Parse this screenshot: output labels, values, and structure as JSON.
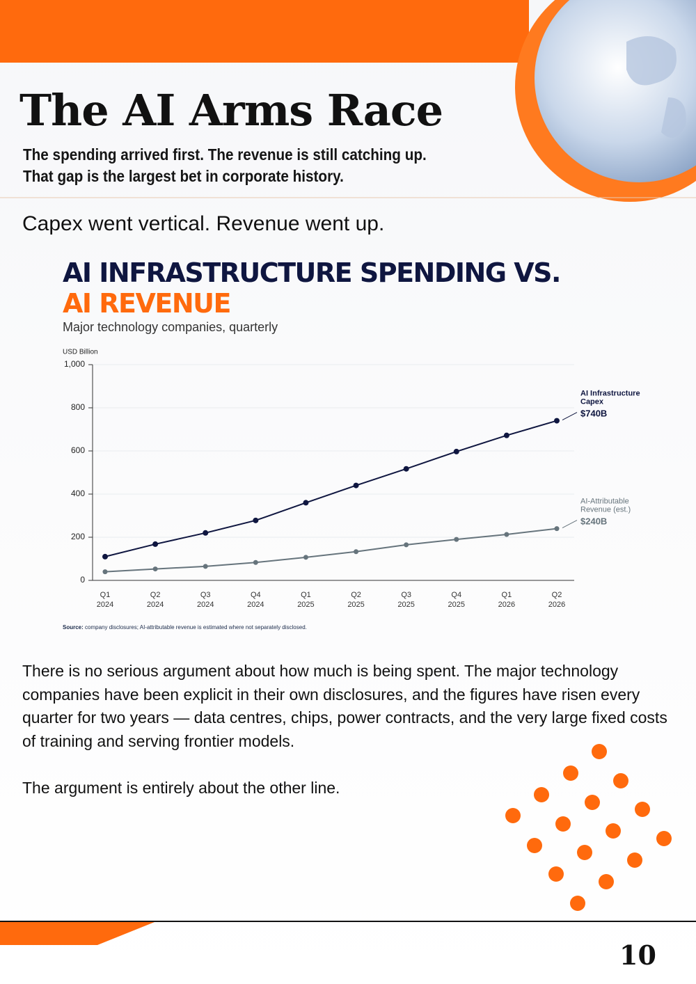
{
  "header": {
    "title": "The AI Arms Race",
    "subtitle_lines": [
      "The spending arrived first. The revenue is still catching up.",
      "That gap is the largest bet in corporate history."
    ]
  },
  "section_heading": "Capex went vertical. Revenue went up.",
  "chart_data": {
    "type": "line",
    "title_lines": [
      "AI INFRASTRUCTURE SPENDING VS.",
      "AI REVENUE"
    ],
    "subtitle": "Major technology companies, quarterly",
    "y_label": "USD Billion",
    "categories": [
      "Q1 2024",
      "Q2 2024",
      "Q3 2024",
      "Q4 2024",
      "Q1 2025",
      "Q2 2025",
      "Q3 2025",
      "Q4 2025",
      "Q1 2026",
      "Q2 2026"
    ],
    "series": [
      {
        "name": "AI Infrastructure Capex",
        "color": "#0f1640",
        "values": [
          110,
          168,
          220,
          278,
          360,
          440,
          517,
          597,
          672,
          740
        ],
        "value_labels": [
          null,
          null,
          null,
          null,
          null,
          null,
          null,
          null,
          null,
          "$740B"
        ]
      },
      {
        "name": "AI-Attributable Revenue (est.)",
        "color": "#66747c",
        "values": [
          40,
          53,
          65,
          83,
          107,
          133,
          165,
          190,
          213,
          240
        ],
        "value_labels": [
          null,
          null,
          null,
          null,
          null,
          null,
          null,
          null,
          null,
          "$240B"
        ]
      }
    ],
    "ylim": [
      0,
      1000
    ],
    "yticks": [
      0,
      200,
      400,
      600,
      800,
      {
        "value": 1000,
        "label": "1,000"
      }
    ],
    "grid": true,
    "source_label": "Source:",
    "source": "company disclosures; AI-attributable revenue is estimated where not separately disclosed."
  },
  "paragraphs": [
    "There is no serious argument about how much is being spent. The major technology companies have been explicit in their own disclosures, and the figures have risen every quarter for two years — data centres, chips, power contracts, and the very large fixed costs of training and serving frontier models.",
    "The argument is entirely about the other line."
  ],
  "page_number": "10"
}
